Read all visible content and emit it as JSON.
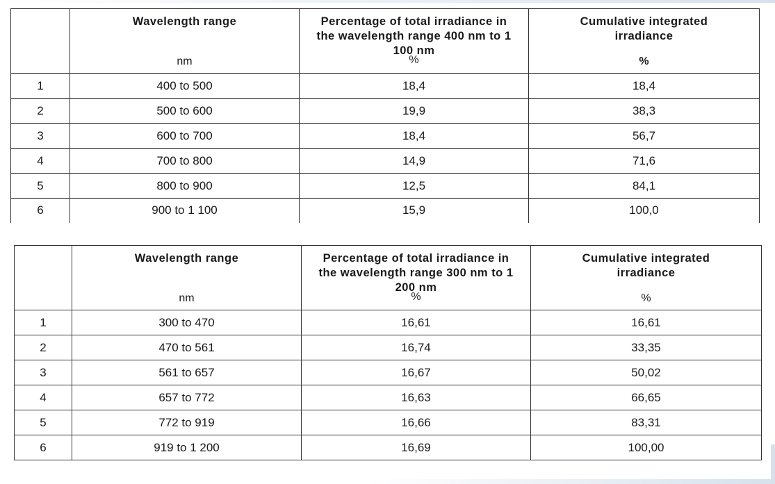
{
  "tables": [
    {
      "headers": {
        "row_header": "",
        "col1": "Wavelength range",
        "col2": "Percentage of total irradiance in the wavelength range 400 nm to 1 100 nm",
        "col3": "Cumulative integrated irradiance"
      },
      "units": {
        "col1": "nm",
        "col2": "%",
        "col3": "%"
      },
      "rows": [
        {
          "index": "1",
          "range": "400 to 500",
          "percentage": "18,4",
          "cumulative": "18,4"
        },
        {
          "index": "2",
          "range": "500 to 600",
          "percentage": "19,9",
          "cumulative": "38,3"
        },
        {
          "index": "3",
          "range": "600 to 700",
          "percentage": "18,4",
          "cumulative": "56,7"
        },
        {
          "index": "4",
          "range": "700 to 800",
          "percentage": "14,9",
          "cumulative": "71,6"
        },
        {
          "index": "5",
          "range": "800 to 900",
          "percentage": "12,5",
          "cumulative": "84,1"
        },
        {
          "index": "6",
          "range": "900 to 1 100",
          "percentage": "15,9",
          "cumulative": "100,0"
        }
      ]
    },
    {
      "headers": {
        "row_header": "",
        "col1": "Wavelength range",
        "col2": "Percentage of total irradiance in the wavelength range 300 nm to 1 200 nm",
        "col3": "Cumulative integrated irradiance"
      },
      "units": {
        "col1": "nm",
        "col2": "%",
        "col3": "%"
      },
      "rows": [
        {
          "index": "1",
          "range": "300 to 470",
          "percentage": "16,61",
          "cumulative": "16,61"
        },
        {
          "index": "2",
          "range": "470 to 561",
          "percentage": "16,74",
          "cumulative": "33,35"
        },
        {
          "index": "3",
          "range": "561 to 657",
          "percentage": "16,67",
          "cumulative": "50,02"
        },
        {
          "index": "4",
          "range": "657 to 772",
          "percentage": "16,63",
          "cumulative": "66,65"
        },
        {
          "index": "5",
          "range": "772 to 919",
          "percentage": "16,66",
          "cumulative": "83,31"
        },
        {
          "index": "6",
          "range": "919 to 1 200",
          "percentage": "16,69",
          "cumulative": "100,00"
        }
      ]
    }
  ]
}
